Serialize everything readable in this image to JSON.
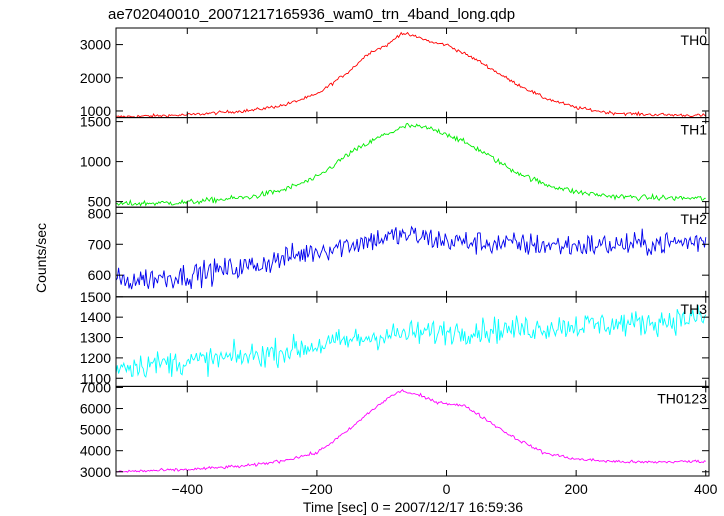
{
  "chart_data": {
    "type": "line",
    "title": "ae702040010_20071217165936_wam0_trn_4band_long.qdp",
    "xlabel": "Time [sec] 0 = 2007/12/17 16:59:36",
    "ylabel": "Counts/sec",
    "xlim": [
      -510,
      405
    ],
    "x_ticks": [
      -400,
      -200,
      0,
      200,
      400
    ],
    "x_tick_labels": [
      "−400",
      "−200",
      "0",
      "200",
      "400"
    ],
    "x_sample_step": 2,
    "panels": [
      {
        "name": "TH0",
        "color": "#ff0000",
        "ylim": [
          800,
          3500
        ],
        "y_ticks": [
          1000,
          2000,
          3000
        ],
        "y_tick_labels": [
          "1000",
          "2000",
          "3000"
        ],
        "noise": 35,
        "profile": [
          [
            -510,
            820
          ],
          [
            -400,
            880
          ],
          [
            -300,
            1020
          ],
          [
            -250,
            1180
          ],
          [
            -200,
            1500
          ],
          [
            -150,
            2200
          ],
          [
            -120,
            2750
          ],
          [
            -90,
            3000
          ],
          [
            -70,
            3350
          ],
          [
            -40,
            3200
          ],
          [
            -20,
            3050
          ],
          [
            0,
            3000
          ],
          [
            50,
            2500
          ],
          [
            100,
            1900
          ],
          [
            150,
            1400
          ],
          [
            200,
            1100
          ],
          [
            250,
            950
          ],
          [
            300,
            900
          ],
          [
            400,
            860
          ]
        ]
      },
      {
        "name": "TH1",
        "color": "#00ee00",
        "ylim": [
          430,
          1550
        ],
        "y_ticks": [
          500,
          1000,
          1500
        ],
        "y_tick_labels": [
          "500",
          "1000",
          "1500"
        ],
        "noise": 25,
        "profile": [
          [
            -510,
            470
          ],
          [
            -400,
            490
          ],
          [
            -300,
            560
          ],
          [
            -250,
            650
          ],
          [
            -200,
            800
          ],
          [
            -150,
            1100
          ],
          [
            -100,
            1320
          ],
          [
            -60,
            1450
          ],
          [
            -30,
            1420
          ],
          [
            0,
            1350
          ],
          [
            50,
            1150
          ],
          [
            100,
            900
          ],
          [
            150,
            720
          ],
          [
            200,
            620
          ],
          [
            250,
            570
          ],
          [
            300,
            550
          ],
          [
            400,
            540
          ]
        ]
      },
      {
        "name": "TH2",
        "color": "#0000ee",
        "ylim": [
          530,
          820
        ],
        "y_ticks": [
          600,
          700,
          800
        ],
        "y_tick_labels": [
          "600",
          "700",
          "800"
        ],
        "noise": 28,
        "profile": [
          [
            -510,
            580
          ],
          [
            -400,
            600
          ],
          [
            -300,
            630
          ],
          [
            -200,
            680
          ],
          [
            -100,
            720
          ],
          [
            -60,
            730
          ],
          [
            0,
            710
          ],
          [
            100,
            700
          ],
          [
            200,
            695
          ],
          [
            300,
            700
          ],
          [
            400,
            710
          ]
        ]
      },
      {
        "name": "TH3",
        "color": "#00ffff",
        "ylim": [
          1060,
          1500
        ],
        "y_ticks": [
          1100,
          1200,
          1300,
          1400,
          1500
        ],
        "y_tick_labels": [
          "1100",
          "1200",
          "1300",
          "1400",
          "1500"
        ],
        "noise": 45,
        "profile": [
          [
            -510,
            1160
          ],
          [
            -400,
            1180
          ],
          [
            -300,
            1210
          ],
          [
            -200,
            1260
          ],
          [
            -100,
            1310
          ],
          [
            0,
            1330
          ],
          [
            100,
            1340
          ],
          [
            200,
            1360
          ],
          [
            300,
            1370
          ],
          [
            400,
            1400
          ]
        ]
      },
      {
        "name": "TH0123",
        "color": "#ff00ff",
        "ylim": [
          2800,
          7050
        ],
        "y_ticks": [
          3000,
          4000,
          5000,
          6000,
          7000
        ],
        "y_tick_labels": [
          "3000",
          "4000",
          "5000",
          "6000",
          "7000"
        ],
        "noise": 55,
        "profile": [
          [
            -510,
            3000
          ],
          [
            -400,
            3100
          ],
          [
            -300,
            3300
          ],
          [
            -250,
            3550
          ],
          [
            -200,
            3900
          ],
          [
            -150,
            5000
          ],
          [
            -120,
            5800
          ],
          [
            -90,
            6500
          ],
          [
            -70,
            6850
          ],
          [
            -40,
            6600
          ],
          [
            -20,
            6350
          ],
          [
            0,
            6250
          ],
          [
            30,
            6100
          ],
          [
            50,
            5700
          ],
          [
            100,
            4700
          ],
          [
            150,
            3900
          ],
          [
            200,
            3600
          ],
          [
            250,
            3500
          ],
          [
            300,
            3450
          ],
          [
            400,
            3500
          ]
        ]
      }
    ]
  }
}
